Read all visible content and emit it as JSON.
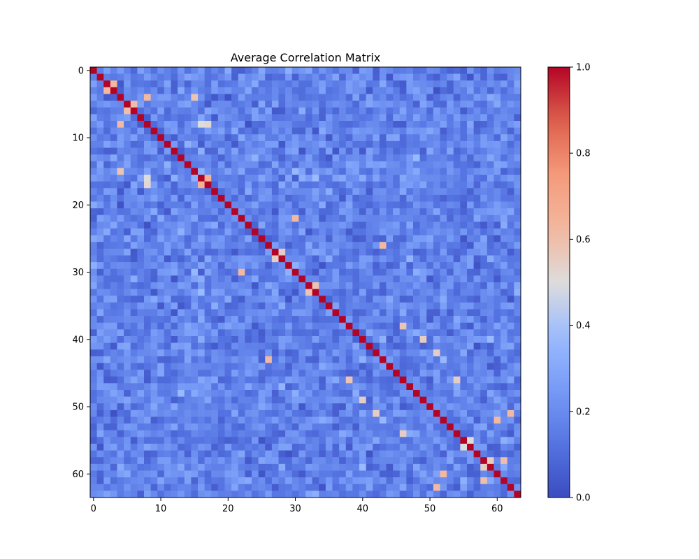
{
  "chart_data": {
    "type": "heatmap",
    "title": "Average Correlation Matrix",
    "xlabel": "",
    "ylabel": "",
    "size": 64,
    "colormap": "coolwarm",
    "colorbar": {
      "vmin": 0.0,
      "vmax": 1.0,
      "ticks": [
        0.0,
        0.2,
        0.4,
        0.6,
        0.8,
        1.0
      ],
      "tick_labels": [
        "0.0",
        "0.2",
        "0.4",
        "0.6",
        "0.8",
        "1.0"
      ]
    },
    "x_ticks": [
      0,
      10,
      20,
      30,
      40,
      50,
      60
    ],
    "x_tick_labels": [
      "0",
      "10",
      "20",
      "30",
      "40",
      "50",
      "60"
    ],
    "y_ticks": [
      0,
      10,
      20,
      30,
      40,
      50,
      60
    ],
    "y_tick_labels": [
      "0",
      "10",
      "20",
      "30",
      "40",
      "50",
      "60"
    ],
    "diagonal_value": 1.0,
    "background_range": [
      0.02,
      0.32
    ],
    "notable_cells": [
      {
        "row": 2,
        "col": 3,
        "value": 0.62
      },
      {
        "row": 3,
        "col": 2,
        "value": 0.62
      },
      {
        "row": 4,
        "col": 8,
        "value": 0.62
      },
      {
        "row": 8,
        "col": 4,
        "value": 0.62
      },
      {
        "row": 4,
        "col": 15,
        "value": 0.58
      },
      {
        "row": 15,
        "col": 4,
        "value": 0.58
      },
      {
        "row": 5,
        "col": 6,
        "value": 0.6
      },
      {
        "row": 6,
        "col": 5,
        "value": 0.6
      },
      {
        "row": 16,
        "col": 17,
        "value": 0.65
      },
      {
        "row": 17,
        "col": 16,
        "value": 0.65
      },
      {
        "row": 8,
        "col": 16,
        "value": 0.5
      },
      {
        "row": 16,
        "col": 8,
        "value": 0.5
      },
      {
        "row": 8,
        "col": 17,
        "value": 0.52
      },
      {
        "row": 17,
        "col": 8,
        "value": 0.52
      },
      {
        "row": 22,
        "col": 30,
        "value": 0.62
      },
      {
        "row": 30,
        "col": 22,
        "value": 0.62
      },
      {
        "row": 26,
        "col": 43,
        "value": 0.62
      },
      {
        "row": 43,
        "col": 26,
        "value": 0.62
      },
      {
        "row": 27,
        "col": 28,
        "value": 0.55
      },
      {
        "row": 28,
        "col": 27,
        "value": 0.55
      },
      {
        "row": 32,
        "col": 33,
        "value": 0.58
      },
      {
        "row": 33,
        "col": 32,
        "value": 0.58
      },
      {
        "row": 38,
        "col": 46,
        "value": 0.58
      },
      {
        "row": 46,
        "col": 38,
        "value": 0.58
      },
      {
        "row": 40,
        "col": 49,
        "value": 0.55
      },
      {
        "row": 49,
        "col": 40,
        "value": 0.55
      },
      {
        "row": 42,
        "col": 51,
        "value": 0.55
      },
      {
        "row": 51,
        "col": 42,
        "value": 0.55
      },
      {
        "row": 52,
        "col": 60,
        "value": 0.62
      },
      {
        "row": 60,
        "col": 52,
        "value": 0.62
      },
      {
        "row": 54,
        "col": 46,
        "value": 0.55
      },
      {
        "row": 46,
        "col": 54,
        "value": 0.55
      },
      {
        "row": 58,
        "col": 61,
        "value": 0.6
      },
      {
        "row": 61,
        "col": 58,
        "value": 0.6
      },
      {
        "row": 51,
        "col": 62,
        "value": 0.62
      },
      {
        "row": 62,
        "col": 51,
        "value": 0.62
      },
      {
        "row": 59,
        "col": 58,
        "value": 0.55
      },
      {
        "row": 58,
        "col": 59,
        "value": 0.55
      },
      {
        "row": 55,
        "col": 56,
        "value": 0.5
      },
      {
        "row": 56,
        "col": 55,
        "value": 0.5
      }
    ]
  }
}
